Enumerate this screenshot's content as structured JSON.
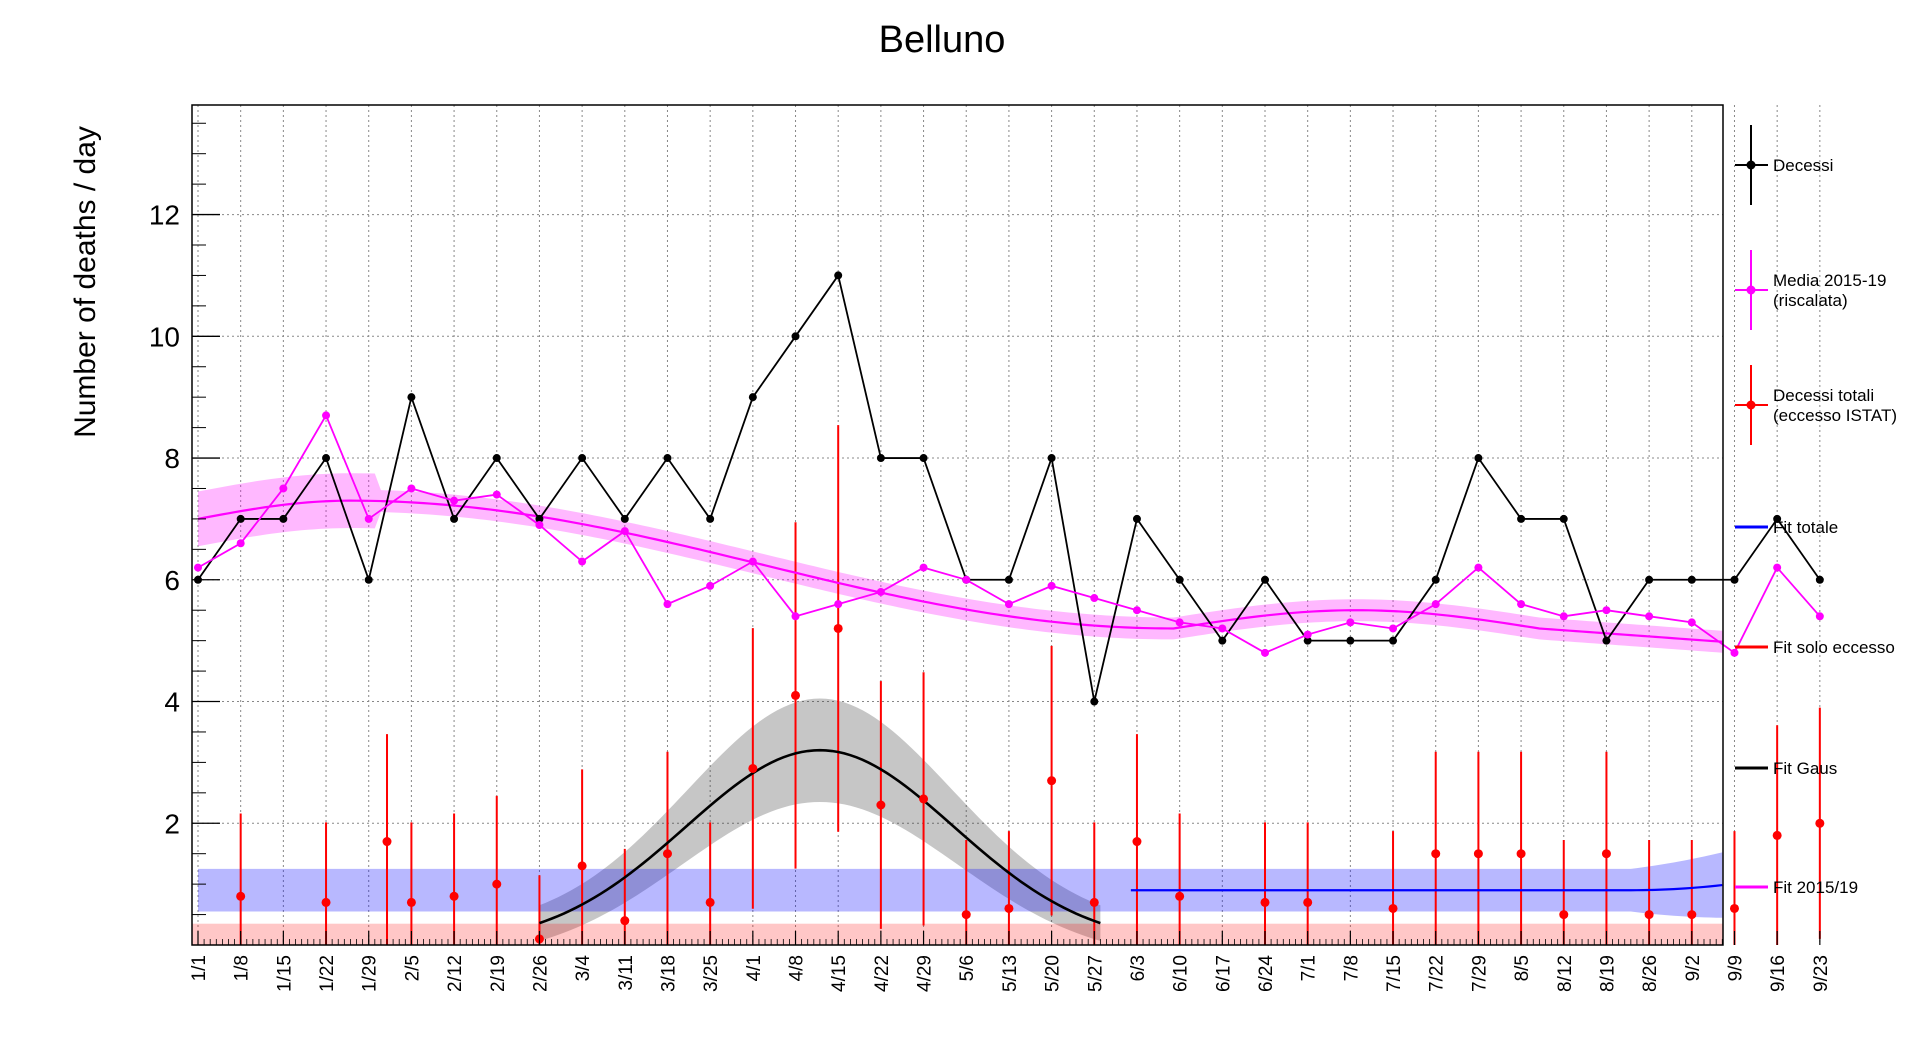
{
  "chart_data": {
    "type": "line",
    "title": "Belluno",
    "xlabel": "",
    "ylabel": "Number of deaths / day",
    "ylim": [
      0,
      13.8
    ],
    "y_ticks": [
      2,
      4,
      6,
      8,
      10,
      12
    ],
    "x_ticks": [
      "1/1",
      "1/8",
      "1/15",
      "1/22",
      "1/29",
      "2/5",
      "2/12",
      "2/19",
      "2/26",
      "3/4",
      "3/11",
      "3/18",
      "3/25",
      "4/1",
      "4/8",
      "4/15",
      "4/22",
      "4/29",
      "5/6",
      "5/13",
      "5/20",
      "5/27",
      "6/3",
      "6/10",
      "6/17",
      "6/24",
      "7/1",
      "7/8",
      "7/15",
      "7/22",
      "7/29",
      "8/5",
      "8/12",
      "8/19",
      "8/26",
      "9/2",
      "9/9",
      "9/16",
      "9/23"
    ],
    "grid": true,
    "legend_position": "right",
    "colors": {
      "decessi": "#000000",
      "media": "#ff00ff",
      "eccesso": "#ff0000",
      "fit_totale": "#0000ff",
      "fit_eccesso": "#ff0000",
      "fit_gaus": "#000000",
      "fit_2015": "#ff00ff"
    },
    "legend": [
      {
        "key": "decessi",
        "label": [
          "Decessi"
        ]
      },
      {
        "key": "media",
        "label": [
          "Media 2015-19",
          "(riscalata)"
        ]
      },
      {
        "key": "eccesso",
        "label": [
          "Decessi totali",
          "(eccesso ISTAT)"
        ]
      },
      {
        "key": "fit_totale",
        "label": [
          "Fit totale"
        ]
      },
      {
        "key": "fit_eccesso",
        "label": [
          "Fit solo eccesso"
        ]
      },
      {
        "key": "fit_gaus",
        "label": [
          "Fit Gaus"
        ]
      },
      {
        "key": "fit_2015",
        "label": [
          "Fit 2015/19"
        ]
      }
    ],
    "series": [
      {
        "name": "Decessi",
        "x": [
          "1/1",
          "1/8",
          "1/15",
          "1/22",
          "1/29",
          "2/5",
          "2/12",
          "2/19",
          "2/26",
          "3/4",
          "3/11",
          "3/18",
          "3/25",
          "4/1",
          "4/8",
          "4/15",
          "4/22",
          "4/29",
          "5/6",
          "5/13",
          "5/20",
          "5/27",
          "6/3",
          "6/10",
          "6/17",
          "6/24",
          "7/1",
          "7/8",
          "7/15",
          "7/22",
          "7/29",
          "8/5",
          "8/12",
          "8/19",
          "8/26",
          "9/2",
          "9/9",
          "9/16",
          "9/23"
        ],
        "values": [
          6,
          7,
          7,
          8,
          6,
          9,
          7,
          8,
          7,
          8,
          7,
          8,
          7,
          9,
          10,
          11,
          8,
          8,
          6,
          6,
          8,
          4,
          7,
          6,
          5,
          6,
          5,
          5,
          5,
          6,
          8,
          7,
          7,
          5,
          6,
          6,
          6,
          7,
          6
        ]
      },
      {
        "name": "Media 2015-19 (riscalata)",
        "x": [
          "1/1",
          "1/8",
          "1/15",
          "1/22",
          "1/29",
          "2/5",
          "2/12",
          "2/19",
          "2/26",
          "3/4",
          "3/11",
          "3/18",
          "3/25",
          "4/1",
          "4/8",
          "4/15",
          "4/22",
          "4/29",
          "5/6",
          "5/13",
          "5/20",
          "5/27",
          "6/3",
          "6/10",
          "6/17",
          "6/24",
          "7/1",
          "7/8",
          "7/15",
          "7/22",
          "7/29",
          "8/5",
          "8/12",
          "8/19",
          "8/26",
          "9/2",
          "9/9",
          "9/16",
          "9/23"
        ],
        "values": [
          6.2,
          6.6,
          7.5,
          8.7,
          7.0,
          7.5,
          7.3,
          7.4,
          6.9,
          6.3,
          6.8,
          5.6,
          5.9,
          6.3,
          5.4,
          5.6,
          5.8,
          6.2,
          6.0,
          5.6,
          5.9,
          5.7,
          5.5,
          5.3,
          5.2,
          4.8,
          5.1,
          5.3,
          5.2,
          5.6,
          6.2,
          5.6,
          5.4,
          5.5,
          5.4,
          5.3,
          4.8,
          6.2,
          5.4
        ]
      },
      {
        "name": "Decessi totali (eccesso ISTAT)",
        "x": [
          "1/8",
          "1/22",
          "2/1",
          "2/5",
          "2/12",
          "2/19",
          "2/26",
          "3/4",
          "3/11",
          "3/18",
          "3/25",
          "4/1",
          "4/8",
          "4/15",
          "4/22",
          "4/29",
          "5/6",
          "5/13",
          "5/20",
          "5/27",
          "6/3",
          "6/10",
          "6/24",
          "7/1",
          "7/15",
          "7/22",
          "7/29",
          "8/5",
          "8/12",
          "8/19",
          "8/26",
          "9/2",
          "9/9",
          "9/16",
          "9/23"
        ],
        "values": [
          0.8,
          0.7,
          1.7,
          0.7,
          0.8,
          1.0,
          0.1,
          1.3,
          0.4,
          1.5,
          0.7,
          2.9,
          4.1,
          5.2,
          2.3,
          2.4,
          0.5,
          0.6,
          2.7,
          0.7,
          1.7,
          0.8,
          0.7,
          0.7,
          0.6,
          1.5,
          1.5,
          1.5,
          0.5,
          1.5,
          0.5,
          0.5,
          0.6,
          1.8,
          2.0
        ]
      }
    ],
    "fits": {
      "fit_gaus": {
        "mean": "4/12",
        "peak": 3.2,
        "sigma_days": 22
      },
      "fit_totale": {
        "baseline": 0.9,
        "end_value": 1.5
      },
      "fit_eccesso": {
        "start": "9/9",
        "end_value": 0.5
      },
      "fit_2015": {
        "start_value": 7.0,
        "peak_value": 7.3,
        "mid_value": 5.2,
        "end_value": 4.8
      }
    }
  }
}
